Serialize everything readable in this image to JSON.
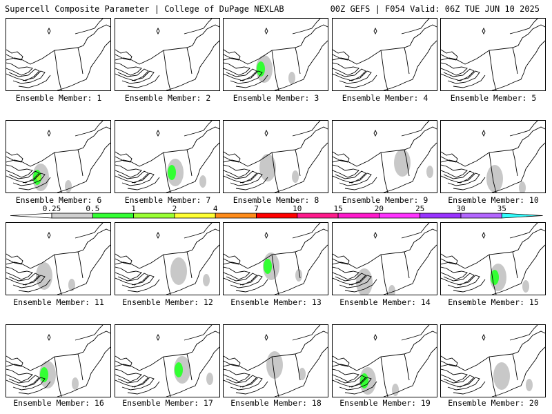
{
  "header": {
    "left": "Supercell Composite Parameter | College of DuPage NEXLAB",
    "right": "00Z GEFS | F054 Valid: 06Z TUE JUN 10 2025"
  },
  "caption_prefix": "Ensemble Member: ",
  "members": [
    {
      "label": "Ensemble Member: 1",
      "blobs": []
    },
    {
      "label": "Ensemble Member: 2",
      "blobs": []
    },
    {
      "label": "Ensemble Member: 3",
      "blobs": [
        "gray",
        "green"
      ]
    },
    {
      "label": "Ensemble Member: 4",
      "blobs": []
    },
    {
      "label": "Ensemble Member: 5",
      "blobs": []
    },
    {
      "label": "Ensemble Member: 6",
      "blobs": [
        "gray",
        "green",
        "lime"
      ]
    },
    {
      "label": "Ensemble Member: 7",
      "blobs": [
        "gray",
        "green"
      ]
    },
    {
      "label": "Ensemble Member: 8",
      "blobs": [
        "gray"
      ]
    },
    {
      "label": "Ensemble Member: 9",
      "blobs": [
        "gray"
      ]
    },
    {
      "label": "Ensemble Member: 10",
      "blobs": [
        "gray"
      ]
    },
    {
      "label": "Ensemble Member: 11",
      "blobs": [
        "gray"
      ]
    },
    {
      "label": "Ensemble Member: 12",
      "blobs": [
        "gray"
      ]
    },
    {
      "label": "Ensemble Member: 13",
      "blobs": [
        "gray",
        "green"
      ]
    },
    {
      "label": "Ensemble Member: 14",
      "blobs": [
        "gray"
      ]
    },
    {
      "label": "Ensemble Member: 15",
      "blobs": [
        "gray",
        "green"
      ]
    },
    {
      "label": "Ensemble Member: 16",
      "blobs": [
        "gray",
        "green"
      ]
    },
    {
      "label": "Ensemble Member: 17",
      "blobs": [
        "gray",
        "green"
      ]
    },
    {
      "label": "Ensemble Member: 18",
      "blobs": [
        "gray"
      ]
    },
    {
      "label": "Ensemble Member: 19",
      "blobs": [
        "gray",
        "green"
      ]
    },
    {
      "label": "Ensemble Member: 20",
      "blobs": [
        "gray"
      ]
    }
  ],
  "colorbar": {
    "ticks": [
      "0.25",
      "0.5",
      "1",
      "2",
      "4",
      "7",
      "10",
      "15",
      "20",
      "25",
      "30",
      "35"
    ],
    "colors": [
      "#cfcfcf",
      "#33ff33",
      "#99ff33",
      "#ffff33",
      "#ff8c1a",
      "#ff0000",
      "#ff1a8c",
      "#ff1acc",
      "#ff33ff",
      "#9933ff",
      "#b366ff",
      "#33ffff"
    ]
  }
}
